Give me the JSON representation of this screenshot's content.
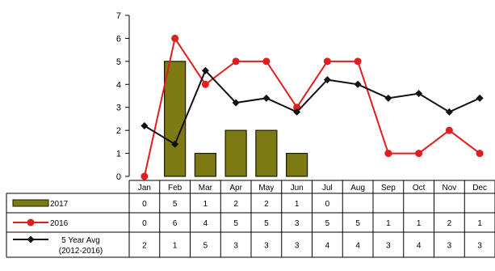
{
  "chart_data": {
    "type": "bar",
    "categories": [
      "Jan",
      "Feb",
      "Mar",
      "Apr",
      "May",
      "Jun",
      "Jul",
      "Aug",
      "Sep",
      "Oct",
      "Nov",
      "Dec"
    ],
    "ylim": [
      0,
      7
    ],
    "yticks": [
      "0",
      "1",
      "2",
      "3",
      "4",
      "5",
      "6",
      "7"
    ],
    "grid": false,
    "series": [
      {
        "name": "2017",
        "kind": "bar",
        "color": "#7d7a13",
        "values": [
          0,
          5,
          1,
          2,
          2,
          1,
          0,
          null,
          null,
          null,
          null,
          null
        ],
        "table_values": [
          "0",
          "5",
          "1",
          "2",
          "2",
          "1",
          "0",
          "",
          "",
          "",
          "",
          ""
        ]
      },
      {
        "name": "2016",
        "kind": "line",
        "color": "#e01e1e",
        "values": [
          0,
          6,
          4,
          5,
          5,
          3,
          5,
          5,
          1,
          1,
          2,
          1
        ],
        "table_values": [
          "0",
          "6",
          "4",
          "5",
          "5",
          "3",
          "5",
          "5",
          "1",
          "1",
          "2",
          "1"
        ]
      },
      {
        "name": "5 Year Avg",
        "name_line2": "(2012-2016)",
        "kind": "line",
        "color": "#111111",
        "values": [
          2.2,
          1.4,
          4.6,
          3.2,
          3.4,
          2.8,
          4.2,
          4.0,
          3.4,
          3.6,
          2.8,
          3.4
        ],
        "table_values": [
          "2",
          "1",
          "5",
          "3",
          "3",
          "3",
          "4",
          "4",
          "3",
          "4",
          "3",
          "3"
        ]
      }
    ]
  }
}
